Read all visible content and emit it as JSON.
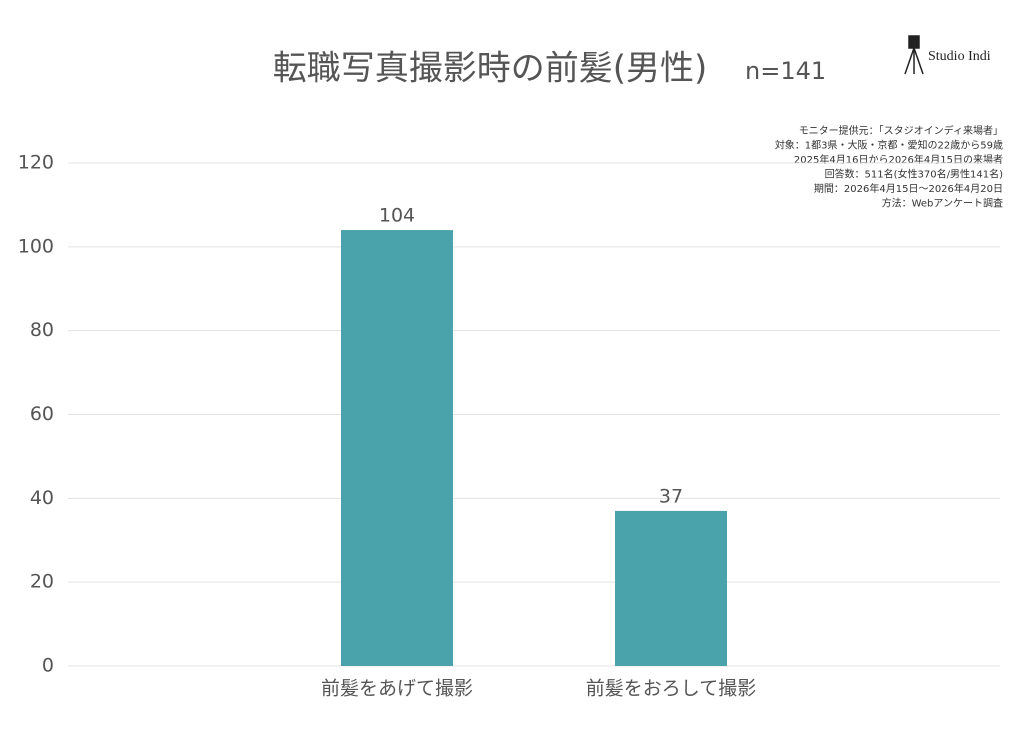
{
  "chart_data": {
    "type": "bar",
    "title": "転職写真撮影時の前髪(男性)",
    "subtitle": "n=141",
    "brand": "Studio Indi",
    "notes": [
      "モニター提供元：「スタジオインディ来場者」",
      "対象：1都3県・大阪・京都・愛知の22歳から59歳",
      "2025年4月16日から2026年4月15日の来場者",
      "回答数：511名(女性370名/男性141名)",
      "期間：2026年4月15日〜2026年4月20日",
      "方法：Webアンケート調査"
    ],
    "categories": [
      "前髪をあげて撮影",
      "前髪をおろして撮影"
    ],
    "values": [
      104,
      37
    ],
    "color": "#4aa2aa",
    "ylim": [
      0,
      120
    ],
    "yticks": [
      0,
      20,
      40,
      60,
      80,
      100,
      120
    ],
    "grid": true
  }
}
